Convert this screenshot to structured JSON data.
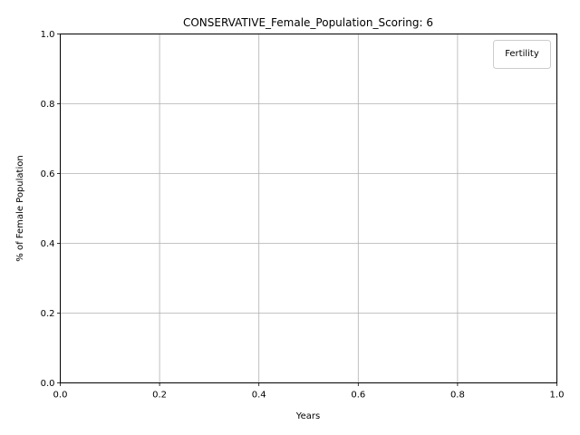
{
  "chart_data": {
    "type": "line",
    "title": "CONSERVATIVE_Female_Population_Scoring: 6",
    "xlabel": "Years",
    "ylabel": "% of Female Population",
    "xlim": [
      0.0,
      1.0
    ],
    "ylim": [
      0.0,
      1.0
    ],
    "xticks": [
      "0.0",
      "0.2",
      "0.4",
      "0.6",
      "0.8",
      "1.0"
    ],
    "yticks": [
      "0.0",
      "0.2",
      "0.4",
      "0.6",
      "0.8",
      "1.0"
    ],
    "grid": true,
    "legend": {
      "title": "Fertility",
      "placement": "top-right",
      "entries": []
    },
    "series": [],
    "colors": {
      "grid": "#b0b0b0",
      "axes": "#000000",
      "legend_border": "#cccccc"
    }
  }
}
